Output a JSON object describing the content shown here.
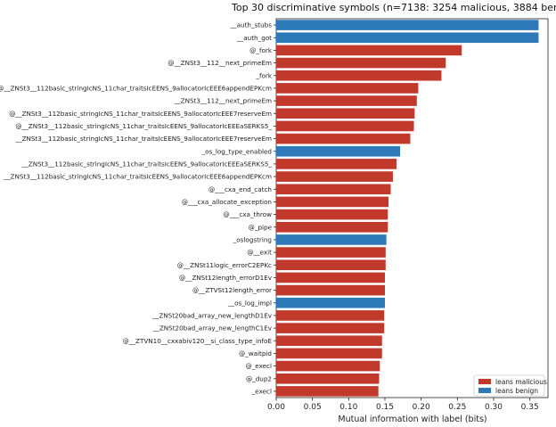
{
  "chart_data": {
    "type": "bar",
    "orientation": "horizontal",
    "title": "Top 30 discriminative symbols  (n=7138: 3254 malicious, 3884 benig",
    "xlabel": "Mutual information with label (bits)",
    "ylabel": "",
    "xlim": [
      0,
      0.375
    ],
    "xticks": [
      "0.00",
      "0.05",
      "0.10",
      "0.15",
      "0.20",
      "0.25",
      "0.30",
      "0.35"
    ],
    "grid": false,
    "legend_position": "bottom-right",
    "colors": {
      "malicious": "#c0392b",
      "benign": "#2e7ab8"
    },
    "series": [
      {
        "name": "leans malicious",
        "key": "malicious"
      },
      {
        "name": "leans benign",
        "key": "benign"
      }
    ],
    "categories": [
      "__auth_stubs",
      "__auth_got",
      "@_fork",
      "@__ZNSt3__112__next_primeEm",
      "_fork",
      "@__ZNSt3__112basic_stringIcNS_11char_traitsIcEENS_9allocatorIcEEE6appendEPKcm",
      "__ZNSt3__112__next_primeEm",
      "@__ZNSt3__112basic_stringIcNS_11char_traitsIcEENS_9allocatorIcEEE7reserveEm",
      "@__ZNSt3__112basic_stringIcNS_11char_traitsIcEENS_9allocatorIcEEEaSERKS5_",
      "__ZNSt3__112basic_stringIcNS_11char_traitsIcEENS_9allocatorIcEEE7reserveEm",
      "_os_log_type_enabled",
      "__ZNSt3__112basic_stringIcNS_11char_traitsIcEENS_9allocatorIcEEEaSERKS5_",
      "__ZNSt3__112basic_stringIcNS_11char_traitsIcEENS_9allocatorIcEEE6appendEPKcm",
      "@___cxa_end_catch",
      "@___cxa_allocate_exception",
      "@___cxa_throw",
      "@_pipe",
      "_oslogstring",
      "@__exit",
      "@__ZNSt11logic_errorC2EPKc",
      "@__ZNSt12length_errorD1Ev",
      "@__ZTVSt12length_error",
      "__os_log_impl",
      "__ZNSt20bad_array_new_lengthD1Ev",
      "__ZNSt20bad_array_new_lengthC1Ev",
      "@__ZTVN10__cxxabiv120__si_class_type_infoE",
      "@_waitpid",
      "@_execl",
      "@_dup2",
      "_execl"
    ],
    "values": [
      0.362,
      0.362,
      0.256,
      0.234,
      0.228,
      0.196,
      0.194,
      0.191,
      0.19,
      0.185,
      0.171,
      0.166,
      0.161,
      0.158,
      0.155,
      0.154,
      0.154,
      0.152,
      0.151,
      0.151,
      0.15,
      0.15,
      0.15,
      0.149,
      0.149,
      0.146,
      0.146,
      0.143,
      0.142,
      0.141
    ],
    "leans": [
      "benign",
      "benign",
      "malicious",
      "malicious",
      "malicious",
      "malicious",
      "malicious",
      "malicious",
      "malicious",
      "malicious",
      "benign",
      "malicious",
      "malicious",
      "malicious",
      "malicious",
      "malicious",
      "malicious",
      "benign",
      "malicious",
      "malicious",
      "malicious",
      "malicious",
      "benign",
      "malicious",
      "malicious",
      "malicious",
      "malicious",
      "malicious",
      "malicious",
      "malicious"
    ]
  }
}
